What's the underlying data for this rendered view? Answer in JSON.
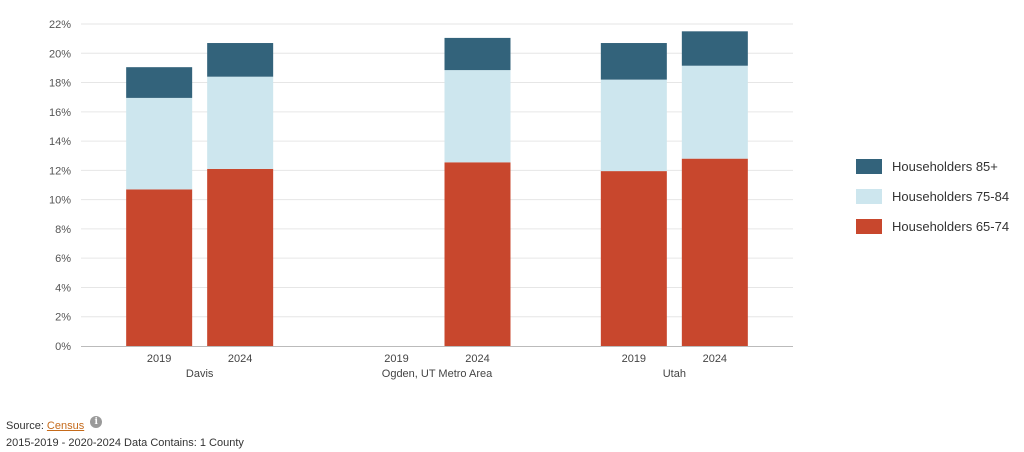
{
  "chart_data": {
    "type": "bar",
    "stacked": true,
    "groups": [
      {
        "label": "Davis",
        "categories": [
          "2019",
          "2024"
        ]
      },
      {
        "label": "Ogden, UT Metro Area",
        "categories": [
          "2019",
          "2024"
        ]
      },
      {
        "label": "Utah",
        "categories": [
          "2019",
          "2024"
        ]
      }
    ],
    "series": [
      {
        "name": "Householders 65-74",
        "color": "#c8472d",
        "values": [
          10.7,
          12.1,
          null,
          12.55,
          11.95,
          12.8
        ]
      },
      {
        "name": "Householders 75-84",
        "color": "#cde6ee",
        "values": [
          6.25,
          6.3,
          null,
          6.3,
          6.25,
          6.35
        ]
      },
      {
        "name": "Householders 85+",
        "color": "#33637b",
        "values": [
          2.1,
          2.3,
          null,
          2.2,
          2.5,
          2.35
        ]
      }
    ],
    "legend_order": [
      "Householders 85+",
      "Householders 75-84",
      "Householders 65-74"
    ],
    "ylim": [
      0,
      22
    ],
    "yticks": [
      "0%",
      "2%",
      "4%",
      "6%",
      "8%",
      "10%",
      "12%",
      "14%",
      "16%",
      "18%",
      "20%",
      "22%"
    ],
    "grid": true,
    "legend_position": "right"
  },
  "footer": {
    "source_prefix": "Source:",
    "source_link": "Census",
    "info_icon": "i",
    "note": "2015-2019 - 2020-2024 Data Contains: 1 County"
  }
}
